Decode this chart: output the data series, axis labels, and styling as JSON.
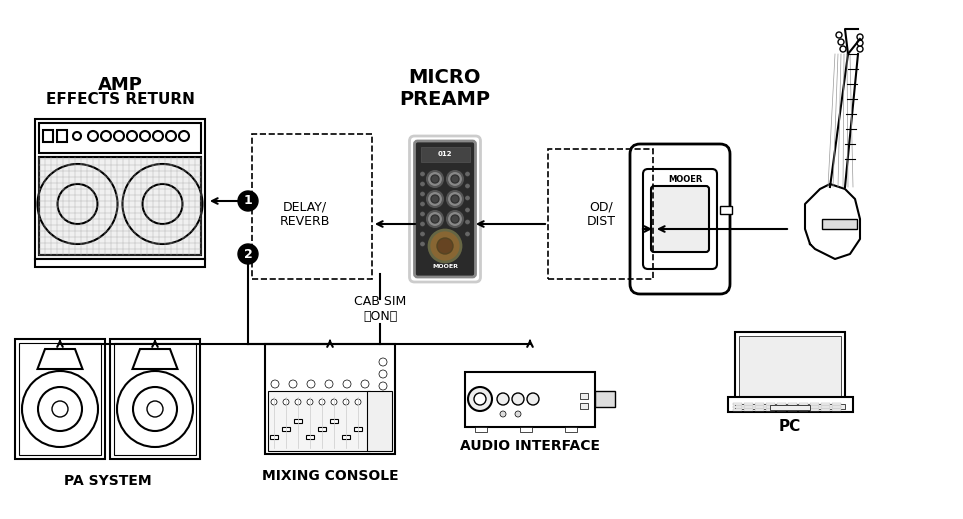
{
  "bg_color": "#ffffff",
  "line_color": "#000000",
  "title": "MICRO\nPREAMP",
  "amp_label1": "AMP",
  "amp_label2": "EFFECTS RETURN",
  "delay_label": "DELAY/\nREVERB",
  "od_label": "OD/\nDIST",
  "cab_label": "CAB SIM\n（ON）",
  "pa_label": "PA SYSTEM",
  "mixer_label": "MIXING CONSOLE",
  "audio_label": "AUDIO INTERFACE",
  "pc_label": "PC",
  "mooer_text": "MOOER",
  "label_fontsize": 11,
  "title_fontsize": 14
}
